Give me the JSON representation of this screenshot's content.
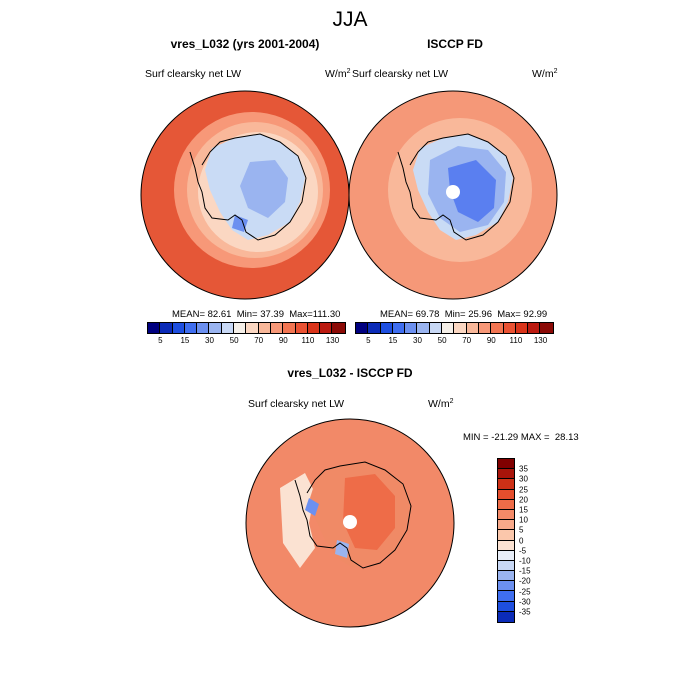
{
  "title": "JJA",
  "colors": {
    "abs_scale": [
      "#000080",
      "#0b2bb8",
      "#1e4fe0",
      "#3f6ef0",
      "#6c90f0",
      "#9ab4f0",
      "#c8d8f5",
      "#f5efe8",
      "#fbd7c2",
      "#f9b89a",
      "#f79878",
      "#f27552",
      "#ea5233",
      "#d9341a",
      "#bb1a10",
      "#8b0a06"
    ],
    "diff_scale": [
      "#000080",
      "#0b2bb8",
      "#1e4fe0",
      "#3f6ef0",
      "#6c90f0",
      "#9ab4f0",
      "#c8d8f5",
      "#e8eef8",
      "#fbe2d2",
      "#fbc7ab",
      "#f8a98a",
      "#f48a68",
      "#ee6c48",
      "#e44e2d",
      "#cd3016",
      "#a8140a",
      "#800000"
    ],
    "ocean_abs": "#ec6a48",
    "ocean_obs": "#f59878",
    "ocean_diff": "#ee7452",
    "ice_model": "#c9dbf5",
    "ice_obs_inner": "#5a7ff0",
    "ice_diff": "#f08a66",
    "coast": "#000000"
  },
  "chart_data": [
    {
      "type": "polar_map",
      "panel": "left",
      "title": "vres_L032 (yrs 2001-2004)",
      "variable": "Surf clearsky net LW",
      "units": "W/m",
      "units_exp": "2",
      "stats": {
        "mean_label": "MEAN=",
        "mean": "82.61",
        "min_label": "Min=",
        "min": "37.39",
        "max_label": "Max=",
        "max": "111.30"
      },
      "colorbar_levels": [
        5,
        10,
        15,
        20,
        30,
        40,
        50,
        60,
        70,
        80,
        90,
        100,
        110,
        120,
        130
      ],
      "colorbar_tick_labels": [
        "5",
        "15",
        "30",
        "50",
        "70",
        "90",
        "110",
        "130"
      ]
    },
    {
      "type": "polar_map",
      "panel": "right",
      "title": "ISCCP FD",
      "variable": "Surf clearsky net LW",
      "units": "W/m",
      "units_exp": "2",
      "stats": {
        "mean_label": "MEAN=",
        "mean": "69.78",
        "min_label": "Min=",
        "min": "25.96",
        "max_label": "Max=",
        "max": "92.99"
      },
      "colorbar_levels": [
        5,
        10,
        15,
        20,
        30,
        40,
        50,
        60,
        70,
        80,
        90,
        100,
        110,
        120,
        130
      ],
      "colorbar_tick_labels": [
        "5",
        "15",
        "30",
        "50",
        "70",
        "90",
        "110",
        "130"
      ]
    },
    {
      "type": "polar_map",
      "panel": "difference",
      "title": "vres_L032 - ISCCP FD",
      "variable": "Surf clearsky net LW",
      "units": "W/m",
      "units_exp": "2",
      "stats": {
        "min_label": "MIN =",
        "min": "-21.29",
        "max_label": "MAX =",
        "max": "28.13"
      },
      "colorbar_levels": [
        35,
        30,
        25,
        20,
        15,
        10,
        5,
        0,
        -5,
        -10,
        -15,
        -20,
        -25,
        -30,
        -35
      ],
      "colorbar_tick_labels": [
        "35",
        "30",
        "25",
        "20",
        "15",
        "10",
        "5",
        "0",
        "-5",
        "-10",
        "-15",
        "-20",
        "-25",
        "-30",
        "-35"
      ]
    }
  ]
}
